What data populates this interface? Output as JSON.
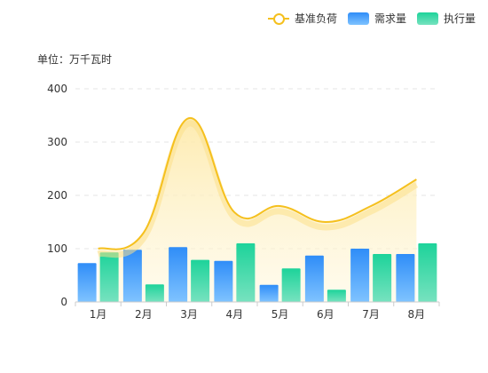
{
  "chart_data": {
    "type": "bar",
    "unit_label": "单位：万千瓦时",
    "categories": [
      "1月",
      "2月",
      "3月",
      "4月",
      "5月",
      "6月",
      "7月",
      "8月"
    ],
    "series": [
      {
        "name": "基准负荷",
        "type": "line",
        "smooth": true,
        "area": true,
        "color": "#f5c01e",
        "values": [
          100,
          130,
          345,
          168,
          180,
          150,
          180,
          230
        ]
      },
      {
        "name": "需求量",
        "type": "bar",
        "color_top": "#2f8df8",
        "color_bottom": "#7fc3ff",
        "values": [
          73,
          98,
          103,
          77,
          32,
          87,
          100,
          90
        ]
      },
      {
        "name": "执行量",
        "type": "bar",
        "color_top": "#1dd39a",
        "color_bottom": "#77e2bf",
        "values": [
          93,
          33,
          79,
          110,
          63,
          23,
          90,
          110
        ]
      }
    ],
    "y_ticks": [
      0,
      100,
      200,
      300,
      400
    ],
    "ylim": [
      0,
      400
    ],
    "grid": true,
    "legend_position": "top-right"
  }
}
